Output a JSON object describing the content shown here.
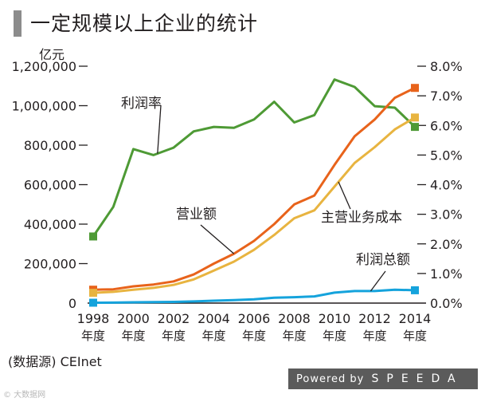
{
  "title": "一定规模以上企业的统计",
  "unit_left": "亿元",
  "source": "(数据源) CEInet",
  "footer": {
    "powered": "Powered by",
    "brand": "SPEEDA"
  },
  "watermark": "© 大数据网",
  "colors": {
    "profit_rate": "#4e9a35",
    "revenue": "#e8631b",
    "main_revenue": "#e8b440",
    "total_profit": "#15a3dc",
    "axis": "#231f20"
  },
  "chart_data": {
    "type": "line",
    "title": "一定规模以上企业的统计",
    "x": [
      1998,
      1999,
      2000,
      2001,
      2002,
      2003,
      2004,
      2005,
      2006,
      2007,
      2008,
      2009,
      2010,
      2011,
      2012,
      2013,
      2014
    ],
    "x_tick_labels": [
      {
        "year": 1998,
        "label": "1998",
        "sub": "年度"
      },
      {
        "year": 2000,
        "label": "2000",
        "sub": "年度"
      },
      {
        "year": 2002,
        "label": "2002",
        "sub": "年度"
      },
      {
        "year": 2004,
        "label": "2004",
        "sub": "年度"
      },
      {
        "year": 2006,
        "label": "2006",
        "sub": "年度"
      },
      {
        "year": 2008,
        "label": "2008",
        "sub": "年度"
      },
      {
        "year": 2010,
        "label": "2010",
        "sub": "年度"
      },
      {
        "year": 2012,
        "label": "2012",
        "sub": "年度"
      },
      {
        "year": 2014,
        "label": "2014",
        "sub": "年度"
      }
    ],
    "y_left": {
      "label": "亿元",
      "ylim": [
        0,
        1200000
      ],
      "ticks": [
        0,
        200000,
        400000,
        600000,
        800000,
        1000000,
        1200000
      ],
      "tick_labels": [
        "0",
        "200,000",
        "400,000",
        "600,000",
        "800,000",
        "1,000,000",
        "1,200,000"
      ]
    },
    "y_right": {
      "ylim": [
        0,
        8
      ],
      "ticks": [
        0,
        1,
        2,
        3,
        4,
        5,
        6,
        7,
        8
      ],
      "tick_labels": [
        "0.0%",
        "1.0%",
        "2.0%",
        "3.0%",
        "4.0%",
        "5.0%",
        "6.0%",
        "7.0%",
        "8.0%"
      ]
    },
    "series": [
      {
        "name": "利润率",
        "axis": "right",
        "color": "#4e9a35",
        "values": [
          2.25,
          3.25,
          5.2,
          5.0,
          5.25,
          5.8,
          5.95,
          5.92,
          6.2,
          6.8,
          6.1,
          6.35,
          7.55,
          7.3,
          6.65,
          6.6,
          5.95
        ]
      },
      {
        "name": "营业额",
        "axis": "left",
        "color": "#e8631b",
        "values": [
          68000,
          70000,
          85000,
          94000,
          110000,
          145000,
          200000,
          250000,
          315000,
          400000,
          500000,
          545000,
          700000,
          845000,
          930000,
          1040000,
          1090000
        ]
      },
      {
        "name": "主营业务成本",
        "axis": "left",
        "color": "#e8b440",
        "values": [
          52000,
          57000,
          68000,
          77000,
          92000,
          120000,
          165000,
          210000,
          270000,
          345000,
          430000,
          470000,
          590000,
          710000,
          790000,
          880000,
          940000
        ]
      },
      {
        "name": "利润总额",
        "axis": "left",
        "color": "#15a3dc",
        "values": [
          2000,
          2500,
          4000,
          4700,
          6000,
          8300,
          12000,
          15000,
          19000,
          27000,
          30000,
          34000,
          53000,
          61000,
          61000,
          68000,
          65000
        ]
      }
    ],
    "annotations": [
      {
        "text": "利润率",
        "series": "利润率"
      },
      {
        "text": "营业额",
        "series": "营业额"
      },
      {
        "text": "主营业务成本",
        "series": "主营业务成本"
      },
      {
        "text": "利润总额",
        "series": "利润总额"
      }
    ],
    "grid": false,
    "legend": "inline labels"
  }
}
